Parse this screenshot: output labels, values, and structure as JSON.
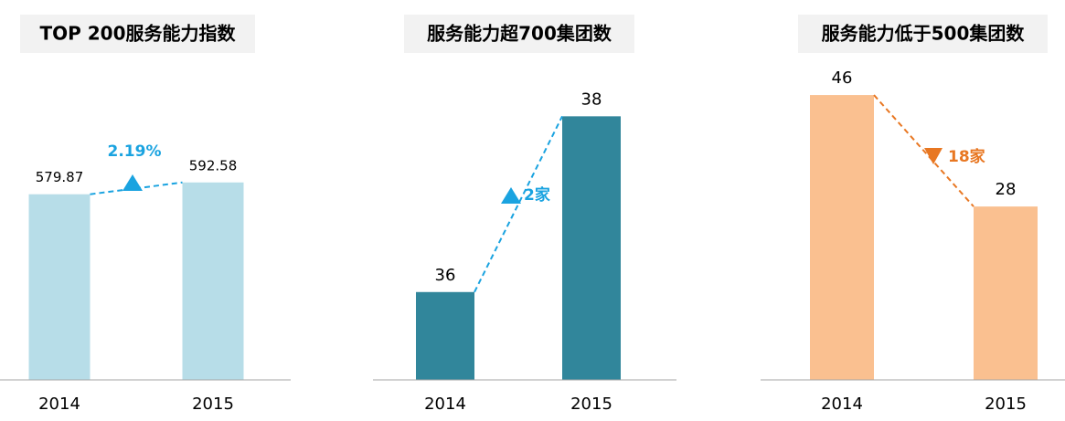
{
  "chart_data": [
    {
      "type": "bar",
      "title": "TOP 200服务能力指数",
      "categories": [
        "2014",
        "2015"
      ],
      "values": [
        579.87,
        592.58
      ],
      "color": "#b7dde8",
      "ylim": [
        380,
        730
      ],
      "annotation": "2.19%",
      "annotation_color": "#1aa3e0"
    },
    {
      "type": "bar",
      "title": "服务能力超700集团数",
      "categories": [
        "2014",
        "2015"
      ],
      "values": [
        36,
        38
      ],
      "color": "#31869b",
      "ylim": [
        35,
        38.7
      ],
      "annotation": "2家",
      "annotation_color": "#1aa3e0"
    },
    {
      "type": "bar",
      "title": "服务能力低于500集团数",
      "categories": [
        "2014",
        "2015"
      ],
      "values": [
        46,
        28
      ],
      "color": "#fac090",
      "ylim": [
        0,
        52.5
      ],
      "annotation": "18家",
      "annotation_color": "#e87722"
    }
  ]
}
